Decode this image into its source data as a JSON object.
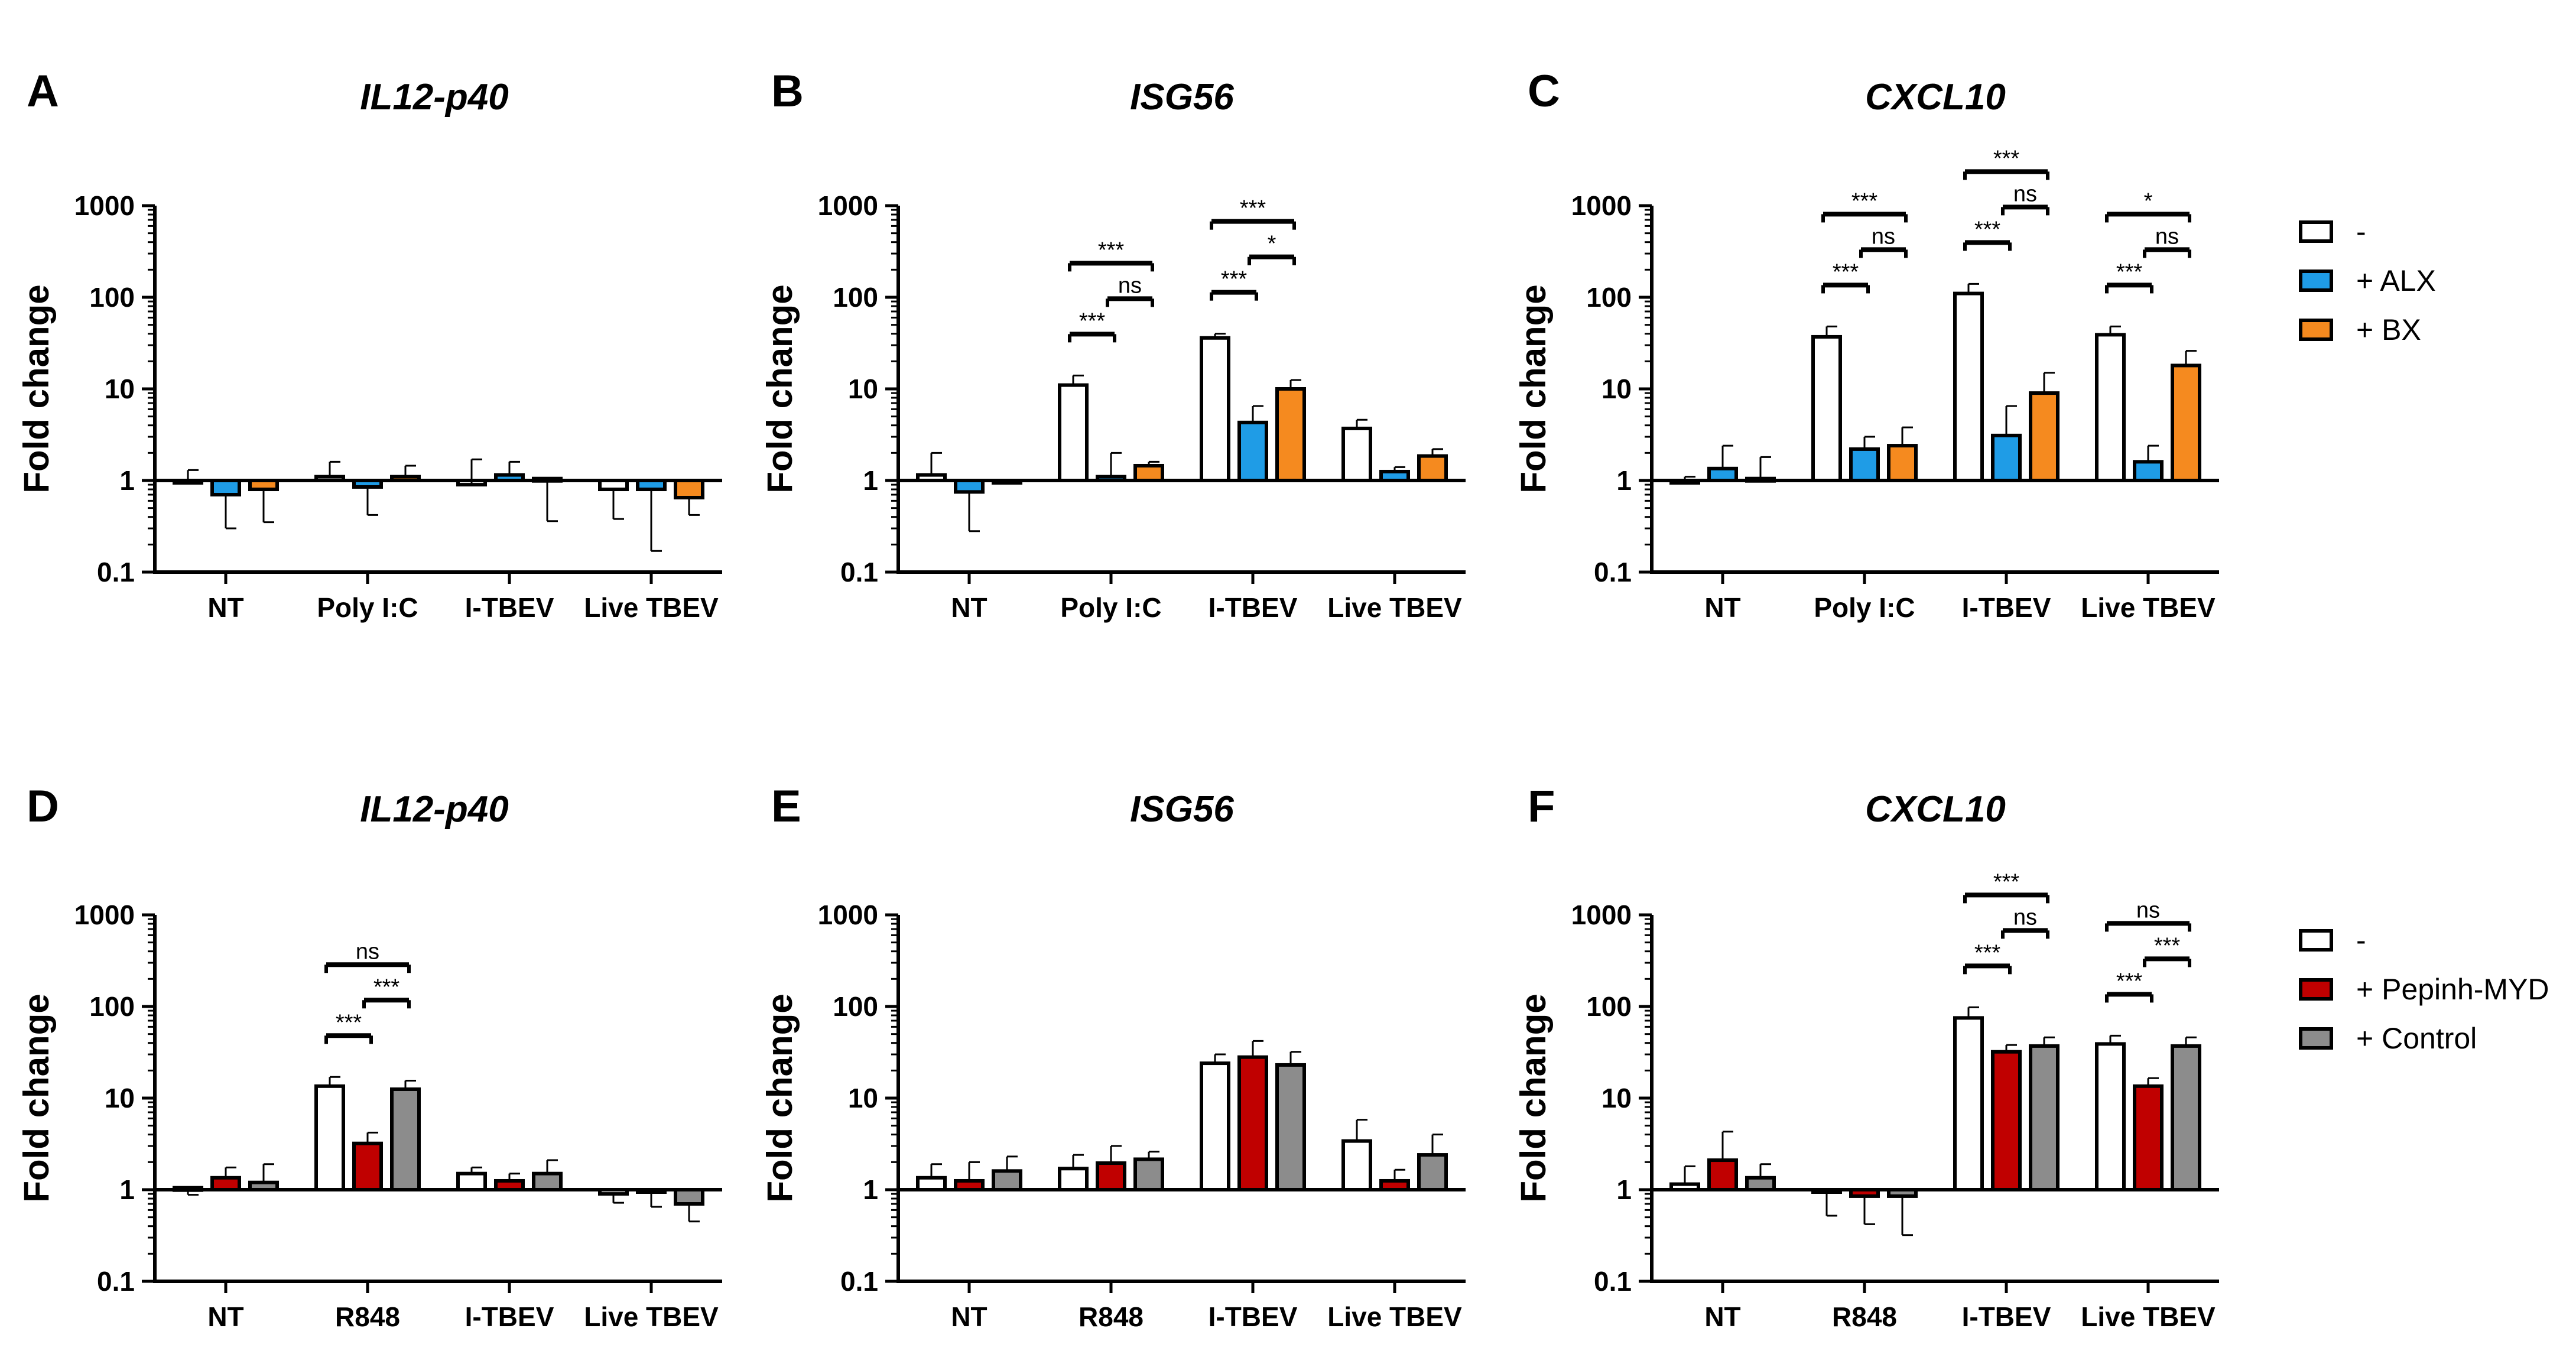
{
  "legends": [
    {
      "id": "legend-top",
      "entries": [
        {
          "label": "-",
          "color": "#ffffff"
        },
        {
          "label": "+ ALX",
          "color": "#1f9ce6"
        },
        {
          "label": "+ BX",
          "color": "#f58a1f"
        }
      ]
    },
    {
      "id": "legend-bottom",
      "entries": [
        {
          "label": "-",
          "color": "#ffffff"
        },
        {
          "label": "+ Pepinh-MYD",
          "color": "#c00000"
        },
        {
          "label": "+ Control",
          "color": "#8c8c8c"
        }
      ]
    }
  ],
  "chart_data": [
    {
      "panel": "A",
      "type": "bar",
      "title": "IL12-p40",
      "ylabel": "Fold change",
      "yscale": "log",
      "ylim": [
        0.1,
        1000
      ],
      "yticks": [
        "1000",
        "100",
        "10",
        "1",
        "0.1"
      ],
      "categories": [
        "NT",
        "Poly I:C",
        "I-TBEV",
        "Live TBEV"
      ],
      "series": [
        {
          "name": "-",
          "color": "#ffffff",
          "values": [
            1.0,
            1.1,
            0.9,
            0.8
          ],
          "errors": [
            1.3,
            1.6,
            1.7,
            0.38
          ]
        },
        {
          "name": "+ ALX",
          "color": "#1f9ce6",
          "values": [
            0.7,
            0.85,
            1.15,
            0.8
          ],
          "errors": [
            0.3,
            0.42,
            1.6,
            0.17
          ]
        },
        {
          "name": "+ BX",
          "color": "#f58a1f",
          "values": [
            0.8,
            1.1,
            1.05,
            0.65
          ],
          "errors": [
            0.35,
            1.45,
            0.36,
            0.42
          ]
        }
      ],
      "significance": []
    },
    {
      "panel": "B",
      "type": "bar",
      "title": "ISG56",
      "ylabel": "Fold change",
      "yscale": "log",
      "ylim": [
        0.1,
        1000
      ],
      "yticks": [
        "1000",
        "100",
        "10",
        "1",
        "0.1"
      ],
      "categories": [
        "NT",
        "Poly I:C",
        "I-TBEV",
        "Live TBEV"
      ],
      "series": [
        {
          "name": "-",
          "color": "#ffffff",
          "values": [
            1.15,
            11,
            36,
            3.7
          ],
          "errors": [
            2.0,
            14,
            40,
            4.6
          ]
        },
        {
          "name": "+ ALX",
          "color": "#1f9ce6",
          "values": [
            0.75,
            1.1,
            4.3,
            1.25
          ],
          "errors": [
            0.28,
            2.0,
            6.5,
            1.4
          ]
        },
        {
          "name": "+ BX",
          "color": "#f58a1f",
          "values": [
            0.95,
            1.45,
            10,
            1.85
          ],
          "errors": [
            1.0,
            1.6,
            12.5,
            2.2
          ]
        }
      ],
      "significance": [
        {
          "category": 1,
          "from": 0,
          "to": 1,
          "label": "***",
          "level": 0
        },
        {
          "category": 1,
          "from": 1,
          "to": 2,
          "label": "ns",
          "level": 1
        },
        {
          "category": 1,
          "from": 0,
          "to": 2,
          "label": "***",
          "level": 2
        },
        {
          "category": 2,
          "from": 0,
          "to": 1,
          "label": "***",
          "level": 0
        },
        {
          "category": 2,
          "from": 1,
          "to": 2,
          "label": "*",
          "level": 1
        },
        {
          "category": 2,
          "from": 0,
          "to": 2,
          "label": "***",
          "level": 2
        }
      ]
    },
    {
      "panel": "C",
      "type": "bar",
      "title": "CXCL10",
      "ylabel": "Fold change",
      "yscale": "log",
      "ylim": [
        0.1,
        1000
      ],
      "yticks": [
        "1000",
        "100",
        "10",
        "1",
        "0.1"
      ],
      "categories": [
        "NT",
        "Poly I:C",
        "I-TBEV",
        "Live TBEV"
      ],
      "series": [
        {
          "name": "-",
          "color": "#ffffff",
          "values": [
            0.95,
            37,
            110,
            39
          ],
          "errors": [
            1.1,
            48,
            140,
            48
          ]
        },
        {
          "name": "+ ALX",
          "color": "#1f9ce6",
          "values": [
            1.35,
            2.2,
            3.1,
            1.6
          ],
          "errors": [
            2.4,
            3.0,
            6.5,
            2.4
          ]
        },
        {
          "name": "+ BX",
          "color": "#f58a1f",
          "values": [
            1.05,
            2.4,
            9.0,
            18
          ],
          "errors": [
            1.8,
            3.8,
            15,
            26
          ]
        }
      ],
      "significance": [
        {
          "category": 1,
          "from": 0,
          "to": 1,
          "label": "***",
          "level": 0
        },
        {
          "category": 1,
          "from": 1,
          "to": 2,
          "label": "ns",
          "level": 1
        },
        {
          "category": 1,
          "from": 0,
          "to": 2,
          "label": "***",
          "level": 2
        },
        {
          "category": 2,
          "from": 0,
          "to": 1,
          "label": "***",
          "level": 0
        },
        {
          "category": 2,
          "from": 1,
          "to": 2,
          "label": "ns",
          "level": 1
        },
        {
          "category": 2,
          "from": 0,
          "to": 2,
          "label": "***",
          "level": 2
        },
        {
          "category": 3,
          "from": 0,
          "to": 1,
          "label": "***",
          "level": 0
        },
        {
          "category": 3,
          "from": 1,
          "to": 2,
          "label": "ns",
          "level": 1
        },
        {
          "category": 3,
          "from": 0,
          "to": 2,
          "label": "*",
          "level": 2
        }
      ]
    },
    {
      "panel": "D",
      "type": "bar",
      "title": "IL12-p40",
      "ylabel": "Fold change",
      "yscale": "log",
      "ylim": [
        0.1,
        1000
      ],
      "yticks": [
        "1000",
        "100",
        "10",
        "1",
        "0.1"
      ],
      "categories": [
        "NT",
        "R848",
        "I-TBEV",
        "Live TBEV"
      ],
      "series": [
        {
          "name": "-",
          "color": "#ffffff",
          "values": [
            1.05,
            13.5,
            1.5,
            0.9
          ],
          "errors": [
            0.88,
            17,
            1.75,
            0.72
          ]
        },
        {
          "name": "+ Pepinh-MYD",
          "color": "#c00000",
          "values": [
            1.35,
            3.2,
            1.25,
            1.0
          ],
          "errors": [
            1.75,
            4.2,
            1.5,
            0.65
          ]
        },
        {
          "name": "+ Control",
          "color": "#8c8c8c",
          "values": [
            1.2,
            12.5,
            1.5,
            0.7
          ],
          "errors": [
            1.9,
            15.5,
            2.1,
            0.45
          ]
        }
      ],
      "significance": [
        {
          "category": 1,
          "from": 0,
          "to": 1,
          "label": "***",
          "level": 0
        },
        {
          "category": 1,
          "from": 1,
          "to": 2,
          "label": "***",
          "level": 1
        },
        {
          "category": 1,
          "from": 0,
          "to": 2,
          "label": "ns",
          "level": 2
        }
      ]
    },
    {
      "panel": "E",
      "type": "bar",
      "title": "ISG56",
      "ylabel": "Fold change",
      "yscale": "log",
      "ylim": [
        0.1,
        1000
      ],
      "yticks": [
        "1000",
        "100",
        "10",
        "1",
        "0.1"
      ],
      "categories": [
        "NT",
        "R848",
        "I-TBEV",
        "Live TBEV"
      ],
      "series": [
        {
          "name": "-",
          "color": "#ffffff",
          "values": [
            1.35,
            1.7,
            24,
            3.4
          ],
          "errors": [
            1.9,
            2.4,
            30,
            5.8
          ]
        },
        {
          "name": "+ Pepinh-MYD",
          "color": "#c00000",
          "values": [
            1.25,
            1.95,
            28,
            1.25
          ],
          "errors": [
            2.0,
            3.0,
            42,
            1.65
          ]
        },
        {
          "name": "+ Control",
          "color": "#8c8c8c",
          "values": [
            1.6,
            2.15,
            23,
            2.4
          ],
          "errors": [
            2.3,
            2.6,
            32,
            4.0
          ]
        }
      ],
      "significance": []
    },
    {
      "panel": "F",
      "type": "bar",
      "title": "CXCL10",
      "ylabel": "Fold change",
      "yscale": "log",
      "ylim": [
        0.1,
        1000
      ],
      "yticks": [
        "1000",
        "100",
        "10",
        "1",
        "0.1"
      ],
      "categories": [
        "NT",
        "R848",
        "I-TBEV",
        "Live TBEV"
      ],
      "series": [
        {
          "name": "-",
          "color": "#ffffff",
          "values": [
            1.15,
            0.95,
            75,
            39
          ],
          "errors": [
            1.8,
            0.52,
            98,
            48
          ]
        },
        {
          "name": "+ Pepinh-MYD",
          "color": "#c00000",
          "values": [
            2.1,
            0.85,
            32,
            13.5
          ],
          "errors": [
            4.3,
            0.42,
            38,
            16.5
          ]
        },
        {
          "name": "+ Control",
          "color": "#8c8c8c",
          "values": [
            1.35,
            0.85,
            37,
            37
          ],
          "errors": [
            1.9,
            0.32,
            46,
            46
          ]
        }
      ],
      "significance": [
        {
          "category": 2,
          "from": 0,
          "to": 1,
          "label": "***",
          "level": 0
        },
        {
          "category": 2,
          "from": 1,
          "to": 2,
          "label": "ns",
          "level": 1
        },
        {
          "category": 2,
          "from": 0,
          "to": 2,
          "label": "***",
          "level": 2
        },
        {
          "category": 3,
          "from": 0,
          "to": 1,
          "label": "***",
          "level": 0
        },
        {
          "category": 3,
          "from": 1,
          "to": 2,
          "label": "***",
          "level": 1
        },
        {
          "category": 3,
          "from": 0,
          "to": 2,
          "label": "ns",
          "level": 2
        }
      ]
    }
  ]
}
